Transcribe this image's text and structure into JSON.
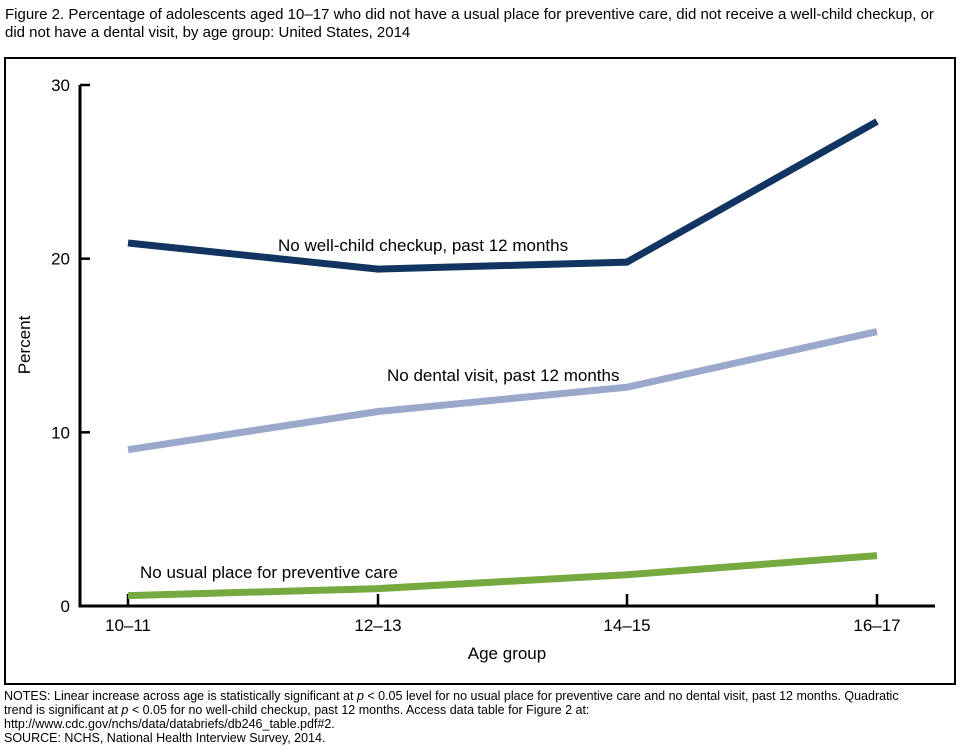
{
  "figure": {
    "title": "Figure 2. Percentage of adolescents aged 10–17 who did not have a usual place for preventive care, did not receive a well-child checkup, or did not have a dental visit, by age group: United States, 2014",
    "notes_lines": [
      "NOTES: Linear increase across age is statistically significant at <i>p</i> < 0.05 level for no usual place for preventive care and no dental visit, past 12 months. Quadratic",
      "trend is significant at <i>p</i> < 0.05 for no well-child checkup, past 12 months. Access data table for Figure 2 at:",
      "http://www.cdc.gov/nchs/data/databriefs/db246_table.pdf#2.",
      "SOURCE: NCHS, National Health Interview Survey, 2014."
    ]
  },
  "chart_data": {
    "type": "line",
    "title": "Figure 2. Percentage of adolescents aged 10–17 who did not have a usual place for preventive care, did not receive a well-child checkup, or did not have a dental visit, by age group: United States, 2014",
    "categories": [
      "10–11",
      "12–13",
      "14–15",
      "16–17"
    ],
    "series": [
      {
        "name": "No well-child checkup, past 12 months",
        "values": [
          20.9,
          19.4,
          19.8,
          27.9
        ],
        "color": "#113461"
      },
      {
        "name": "No dental visit, past 12 months",
        "values": [
          9.0,
          11.2,
          12.6,
          15.8
        ],
        "color": "#9aa8cc"
      },
      {
        "name": "No usual place for preventive care",
        "values": [
          0.6,
          1.0,
          1.8,
          2.9
        ],
        "color": "#76aa40"
      }
    ],
    "xlabel": "Age group",
    "ylabel": "Percent",
    "ylim": [
      0,
      30
    ],
    "yticks": [
      0,
      10,
      20,
      30
    ],
    "grid": false,
    "legend": "inline-data-labels",
    "axis_color": "#000000",
    "text_color": "#000000"
  }
}
